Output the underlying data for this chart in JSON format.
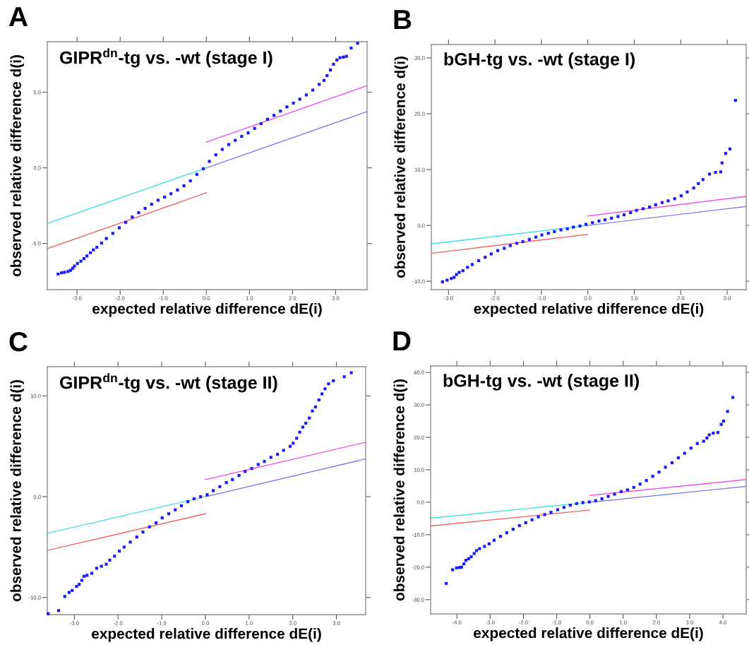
{
  "chart_data": [
    {
      "type": "scatter",
      "title": "GIPR$^{dn}$-tg vs. -wt (stage I)",
      "xlabel": "expected relative difference dE(i)",
      "ylabel": "observed relative difference d(i)",
      "annotations": [
        "A"
      ],
      "xlim": [
        -3.69,
        3.73
      ],
      "ylim": [
        -8.05,
        8.34
      ],
      "xticks": [
        {
          "value": -3,
          "label": "-3.0"
        },
        {
          "value": -2,
          "label": "-2.0"
        },
        {
          "value": -1,
          "label": "-1.0"
        },
        {
          "value": 0,
          "label": "0.0"
        },
        {
          "value": 1,
          "label": "1.0"
        },
        {
          "value": 2,
          "label": "2.0"
        },
        {
          "value": 3,
          "label": "3.0"
        }
      ],
      "yticks": [
        {
          "value": -5,
          "label": "-5.0"
        },
        {
          "value": 0,
          "label": "0.0"
        },
        {
          "value": 5,
          "label": "5.0"
        }
      ],
      "series": [
        {
          "marker": "square",
          "color": "#1a1aff",
          "x": [
            -3.44,
            -3.36,
            -3.29,
            -3.21,
            -3.15,
            -3.1,
            -3.06,
            -2.99,
            -2.91,
            -2.84,
            -2.77,
            -2.69,
            -2.62,
            -2.54,
            -2.43,
            -2.32,
            -2.17,
            -2.02,
            -1.87,
            -1.72,
            -1.57,
            -1.42,
            -1.27,
            -1.12,
            -0.97,
            -0.82,
            -0.67,
            -0.52,
            -0.37,
            -0.22,
            -0.07,
            0.07,
            0.22,
            0.37,
            0.52,
            0.67,
            0.82,
            0.97,
            1.12,
            1.27,
            1.42,
            1.57,
            1.72,
            1.87,
            2.02,
            2.17,
            2.32,
            2.47,
            2.62,
            2.73,
            2.8,
            2.88,
            2.95,
            3.03,
            3.1,
            3.18,
            3.25,
            3.36,
            3.51
          ],
          "values": [
            -7.02,
            -6.94,
            -6.9,
            -6.85,
            -6.77,
            -6.64,
            -6.49,
            -6.32,
            -6.17,
            -6.0,
            -5.82,
            -5.61,
            -5.42,
            -5.25,
            -4.97,
            -4.67,
            -4.33,
            -3.96,
            -3.6,
            -3.25,
            -2.96,
            -2.68,
            -2.4,
            -2.14,
            -1.93,
            -1.71,
            -1.46,
            -1.18,
            -0.86,
            -0.43,
            -0.06,
            0.43,
            0.86,
            1.22,
            1.54,
            1.82,
            2.08,
            2.31,
            2.61,
            2.93,
            3.21,
            3.47,
            3.75,
            4.03,
            4.28,
            4.54,
            4.82,
            5.14,
            5.52,
            5.78,
            6.1,
            6.47,
            6.85,
            7.13,
            7.28,
            7.32,
            7.37,
            7.92,
            8.24
          ]
        },
        {
          "type": "line",
          "color": "#3fe0e6",
          "x": [
            -3.69,
            0
          ],
          "values": [
            -3.67,
            0
          ]
        },
        {
          "type": "line",
          "color": "#7b7bf0",
          "x": [
            0,
            3.73
          ],
          "values": [
            0,
            3.72
          ]
        },
        {
          "type": "line",
          "color": "#f050f0",
          "x": [
            0,
            3.73
          ],
          "values": [
            1.7,
            5.43
          ]
        },
        {
          "type": "line",
          "color": "#f06060",
          "x": [
            -3.69,
            0
          ],
          "values": [
            -5.34,
            -1.65
          ]
        }
      ]
    },
    {
      "type": "scatter",
      "title": "bGH-tg vs. -wt (stage I)",
      "xlabel": "expected relative difference dE(i)",
      "ylabel": "observed relative difference d(i)",
      "annotations": [
        "B"
      ],
      "xlim": [
        -3.37,
        3.41
      ],
      "ylim": [
        -11.5,
        32.4
      ],
      "xticks": [
        {
          "value": -3,
          "label": "-3.0"
        },
        {
          "value": -2,
          "label": "-2.0"
        },
        {
          "value": -1,
          "label": "-1.0"
        },
        {
          "value": 0,
          "label": "0.0"
        },
        {
          "value": 1,
          "label": "1.0"
        },
        {
          "value": 2,
          "label": "2.0"
        },
        {
          "value": 3,
          "label": "3.0"
        }
      ],
      "yticks": [
        {
          "value": -10,
          "label": "-10.0"
        },
        {
          "value": 0,
          "label": "0.0"
        },
        {
          "value": 10,
          "label": "10.0"
        },
        {
          "value": 20,
          "label": "20.0"
        },
        {
          "value": 30,
          "label": "30.0"
        }
      ],
      "series": [
        {
          "marker": "square",
          "color": "#1a1aff",
          "x": [
            -3.13,
            -3.03,
            -2.94,
            -2.88,
            -2.83,
            -2.77,
            -2.69,
            -2.59,
            -2.49,
            -2.35,
            -2.21,
            -2.08,
            -1.94,
            -1.8,
            -1.67,
            -1.53,
            -1.4,
            -1.26,
            -1.12,
            -0.99,
            -0.85,
            -0.72,
            -0.58,
            -0.44,
            -0.31,
            -0.17,
            -0.04,
            0.1,
            0.24,
            0.37,
            0.51,
            0.65,
            0.78,
            0.92,
            1.05,
            1.19,
            1.33,
            1.46,
            1.6,
            1.73,
            1.87,
            2.01,
            2.14,
            2.28,
            2.38,
            2.48,
            2.62,
            2.75,
            2.86,
            2.89,
            2.97,
            3.06,
            3.18
          ],
          "values": [
            -10.1,
            -9.8,
            -9.5,
            -9.3,
            -8.8,
            -8.4,
            -8.1,
            -7.5,
            -7.0,
            -6.3,
            -5.7,
            -5.1,
            -4.5,
            -4.1,
            -3.6,
            -3.2,
            -2.9,
            -2.5,
            -2.1,
            -1.7,
            -1.4,
            -1.1,
            -0.8,
            -0.6,
            -0.3,
            -0.1,
            0.2,
            0.5,
            0.8,
            1.0,
            1.3,
            1.6,
            1.9,
            2.3,
            2.7,
            3.0,
            3.3,
            3.7,
            4.1,
            4.4,
            4.8,
            5.3,
            6.0,
            6.7,
            7.5,
            8.2,
            9.2,
            9.5,
            9.6,
            11.2,
            12.9,
            13.7,
            22.4
          ]
        },
        {
          "type": "line",
          "color": "#3fe0e6",
          "x": [
            -3.37,
            0
          ],
          "values": [
            -3.3,
            0
          ]
        },
        {
          "type": "line",
          "color": "#7b7bf0",
          "x": [
            0,
            3.41
          ],
          "values": [
            0,
            3.4
          ]
        },
        {
          "type": "line",
          "color": "#f050f0",
          "x": [
            0,
            3.41
          ],
          "values": [
            1.7,
            5.2
          ]
        },
        {
          "type": "line",
          "color": "#f06060",
          "x": [
            -3.37,
            0
          ],
          "values": [
            -5.0,
            -1.6
          ]
        }
      ]
    },
    {
      "type": "scatter",
      "title": "GIPR$^{dn}$-tg vs. -wt (stage II)",
      "xlabel": "expected relative difference dE(i)",
      "ylabel": "observed relative difference d(i)",
      "annotations": [
        "C"
      ],
      "xlim": [
        -3.62,
        3.67
      ],
      "ylim": [
        -11.7,
        12.9
      ],
      "xticks": [
        {
          "value": -3,
          "label": "-3.0"
        },
        {
          "value": -2,
          "label": "-2.0"
        },
        {
          "value": -1,
          "label": "-1.0"
        },
        {
          "value": 0,
          "label": "0.0"
        },
        {
          "value": 1,
          "label": "1.0"
        },
        {
          "value": 2,
          "label": "2.0"
        },
        {
          "value": 3,
          "label": "3.0"
        }
      ],
      "yticks": [
        {
          "value": -10,
          "label": "-10.0"
        },
        {
          "value": 0,
          "label": "0.0"
        },
        {
          "value": 10,
          "label": "10.0"
        }
      ],
      "series": [
        {
          "marker": "square",
          "color": "#1a1aff",
          "x": [
            -3.6,
            -3.36,
            -3.22,
            -3.12,
            -3.05,
            -2.95,
            -2.89,
            -2.83,
            -2.78,
            -2.71,
            -2.6,
            -2.49,
            -2.38,
            -2.27,
            -2.19,
            -2.08,
            -1.97,
            -1.86,
            -1.72,
            -1.57,
            -1.43,
            -1.28,
            -1.13,
            -0.99,
            -0.84,
            -0.69,
            -0.55,
            -0.4,
            -0.26,
            -0.11,
            0.04,
            0.18,
            0.33,
            0.48,
            0.62,
            0.77,
            0.91,
            1.06,
            1.21,
            1.35,
            1.5,
            1.65,
            1.79,
            1.94,
            2.01,
            2.09,
            2.16,
            2.23,
            2.3,
            2.38,
            2.45,
            2.52,
            2.6,
            2.67,
            2.74,
            2.82,
            2.93,
            3.18,
            3.34
          ],
          "values": [
            -11.6,
            -11.3,
            -9.9,
            -9.5,
            -9.3,
            -8.9,
            -8.7,
            -8.3,
            -7.9,
            -7.8,
            -7.6,
            -7.1,
            -6.9,
            -6.7,
            -6.3,
            -5.9,
            -5.4,
            -5.0,
            -4.5,
            -4.0,
            -3.5,
            -3.0,
            -2.6,
            -2.1,
            -1.7,
            -1.3,
            -0.9,
            -0.5,
            -0.2,
            0.0,
            0.2,
            0.6,
            1.0,
            1.4,
            1.7,
            2.1,
            2.5,
            2.8,
            3.2,
            3.5,
            3.9,
            4.2,
            4.6,
            5.0,
            5.3,
            5.8,
            6.4,
            6.9,
            7.3,
            7.8,
            8.5,
            8.9,
            9.6,
            10.2,
            10.7,
            11.2,
            11.5,
            11.9,
            12.3
          ]
        },
        {
          "type": "line",
          "color": "#3fe0e6",
          "x": [
            -3.62,
            0
          ],
          "values": [
            -3.63,
            0
          ]
        },
        {
          "type": "line",
          "color": "#7b7bf0",
          "x": [
            0,
            3.67
          ],
          "values": [
            0,
            3.75
          ]
        },
        {
          "type": "line",
          "color": "#f050f0",
          "x": [
            0,
            3.67
          ],
          "values": [
            1.69,
            5.4
          ]
        },
        {
          "type": "line",
          "color": "#f06060",
          "x": [
            -3.62,
            0
          ],
          "values": [
            -5.33,
            -1.69
          ]
        }
      ]
    },
    {
      "type": "scatter",
      "title": "bGH-tg vs. -wt (stage II)",
      "xlabel": "expected relative difference dE(i)",
      "ylabel": "observed relative difference d(i)",
      "annotations": [
        "D"
      ],
      "xlim": [
        -4.79,
        4.7
      ],
      "ylim": [
        -34.4,
        42.0
      ],
      "xticks": [
        {
          "value": -4,
          "label": "-4.0"
        },
        {
          "value": -3,
          "label": "-3.0"
        },
        {
          "value": -2,
          "label": "-2.0"
        },
        {
          "value": -1,
          "label": "-1.0"
        },
        {
          "value": 0,
          "label": "0.0"
        },
        {
          "value": 1,
          "label": "1.0"
        },
        {
          "value": 2,
          "label": "2.0"
        },
        {
          "value": 3,
          "label": "3.0"
        },
        {
          "value": 4,
          "label": "4.0"
        }
      ],
      "yticks": [
        {
          "value": -30,
          "label": "-30.0"
        },
        {
          "value": -20,
          "label": "-20.0"
        },
        {
          "value": -10,
          "label": "-10.0"
        },
        {
          "value": 0,
          "label": "0.0"
        },
        {
          "value": 10,
          "label": "10.0"
        },
        {
          "value": 20,
          "label": "20.0"
        },
        {
          "value": 30,
          "label": "30.0"
        },
        {
          "value": 40,
          "label": "40.0"
        }
      ],
      "series": [
        {
          "marker": "square",
          "color": "#1a1aff",
          "x": [
            -4.32,
            -4.13,
            -4.01,
            -3.92,
            -3.86,
            -3.79,
            -3.73,
            -3.65,
            -3.57,
            -3.48,
            -3.41,
            -3.32,
            -3.17,
            -3.03,
            -2.88,
            -2.69,
            -2.5,
            -2.31,
            -2.12,
            -1.93,
            -1.74,
            -1.55,
            -1.36,
            -1.17,
            -0.97,
            -0.78,
            -0.59,
            -0.4,
            -0.21,
            -0.02,
            0.17,
            0.36,
            0.55,
            0.74,
            0.94,
            1.13,
            1.32,
            1.51,
            1.7,
            1.89,
            2.08,
            2.27,
            2.47,
            2.66,
            2.85,
            3.04,
            3.23,
            3.42,
            3.52,
            3.59,
            3.71,
            3.85,
            3.95,
            4.02,
            4.14,
            4.3
          ],
          "values": [
            -25.0,
            -20.8,
            -20.2,
            -20.1,
            -20.0,
            -19.0,
            -17.9,
            -17.4,
            -16.8,
            -15.8,
            -14.9,
            -14.3,
            -13.6,
            -12.8,
            -11.7,
            -10.5,
            -9.4,
            -8.3,
            -7.2,
            -6.3,
            -5.4,
            -4.5,
            -3.8,
            -3.1,
            -2.3,
            -1.6,
            -0.9,
            -0.4,
            -0.1,
            0.1,
            0.5,
            1.1,
            1.8,
            2.5,
            3.3,
            3.8,
            4.6,
            5.6,
            6.7,
            8.0,
            9.3,
            10.8,
            12.2,
            13.7,
            15.1,
            16.7,
            18.1,
            18.8,
            19.8,
            20.8,
            21.3,
            21.5,
            24.0,
            25.0,
            28.0,
            32.3
          ]
        },
        {
          "type": "line",
          "color": "#3fe0e6",
          "x": [
            -4.79,
            0
          ],
          "values": [
            -4.9,
            0
          ]
        },
        {
          "type": "line",
          "color": "#7b7bf0",
          "x": [
            0,
            4.7
          ],
          "values": [
            0,
            4.9
          ]
        },
        {
          "type": "line",
          "color": "#f050f0",
          "x": [
            0,
            4.7
          ],
          "values": [
            2.1,
            7.0
          ]
        },
        {
          "type": "line",
          "color": "#f06060",
          "x": [
            -4.79,
            0
          ],
          "values": [
            -7.3,
            -2.4
          ]
        }
      ]
    }
  ]
}
